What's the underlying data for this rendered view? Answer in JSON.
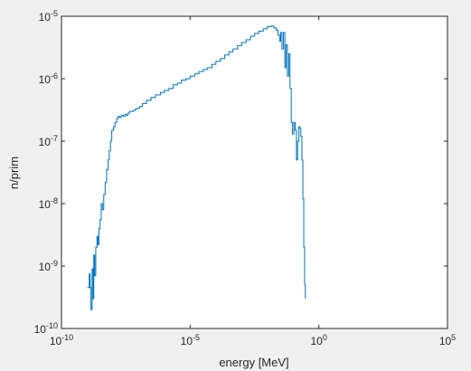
{
  "chart_data": {
    "type": "line",
    "xlabel": "energy [MeV]",
    "ylabel": "n/prim",
    "xscale": "log",
    "yscale": "log",
    "xlim": [
      1e-10,
      100000
    ],
    "ylim": [
      1e-10,
      1e-05
    ],
    "xticks": [
      {
        "value": 1e-10,
        "base": "10",
        "exp": "-10"
      },
      {
        "value": 1e-05,
        "base": "10",
        "exp": "-5"
      },
      {
        "value": 1,
        "base": "10",
        "exp": "0"
      },
      {
        "value": 100000,
        "base": "10",
        "exp": "5"
      }
    ],
    "yticks": [
      {
        "value": 1e-10,
        "base": "10",
        "exp": "-10"
      },
      {
        "value": 1e-09,
        "base": "10",
        "exp": "-9"
      },
      {
        "value": 1e-08,
        "base": "10",
        "exp": "-8"
      },
      {
        "value": 1e-07,
        "base": "10",
        "exp": "-7"
      },
      {
        "value": 1e-06,
        "base": "10",
        "exp": "-6"
      },
      {
        "value": 1e-05,
        "base": "10",
        "exp": "-5"
      }
    ],
    "grid": false,
    "line_color": "#0072bd",
    "series": [
      {
        "x": [
          1e-09,
          1.1e-09,
          1.2e-09,
          1.3e-09,
          1.4e-09,
          1.55e-09,
          1.7e-09,
          1.8e-09,
          1.95e-09,
          2.15e-09,
          2.4e-09,
          2.6e-09,
          2.85e-09,
          3.15e-09,
          3.5e-09,
          3.9e-09,
          4.4e-09,
          5e-09,
          5.7e-09,
          6.5e-09,
          7.2e-09,
          8e-09,
          9e-09,
          1.05e-08,
          1.2e-08,
          1.4e-08,
          1.6e-08,
          1.8e-08,
          2.1e-08,
          2.5e-08,
          2.9e-08,
          3.3e-08,
          3.8e-08,
          4.4e-08,
          5.2e-08,
          6.2e-08,
          7.5e-08,
          9e-08,
          1.1e-07,
          1.4e-07,
          2e-07,
          3e-07,
          4.5e-07,
          7e-07,
          1e-06,
          1.5e-06,
          2.2e-06,
          3.2e-06,
          4.6e-06,
          7e-06,
          1e-05,
          1.5e-05,
          2.2e-05,
          3.2e-05,
          4.6e-05,
          7e-05,
          0.0001,
          0.00015,
          0.00022,
          0.00032,
          0.00046,
          0.0007,
          0.001,
          0.0015,
          0.0022,
          0.0032,
          0.0046,
          0.007,
          0.01,
          0.014,
          0.018,
          0.022,
          0.026,
          0.03,
          0.033,
          0.037,
          0.042,
          0.048,
          0.053,
          0.06,
          0.068,
          0.076,
          0.085,
          0.095,
          0.108,
          0.12,
          0.135,
          0.15,
          0.168,
          0.185,
          0.2,
          0.22,
          0.24,
          0.26,
          0.28,
          0.3
        ],
        "y": [
          4.5e-10,
          4.5e-10,
          7.5e-10,
          4.5e-10,
          2e-10,
          9e-10,
          3e-10,
          1.5e-09,
          7e-10,
          2e-09,
          3e-09,
          2.2e-09,
          4e-09,
          5.5e-09,
          1e-08,
          8e-09,
          1.4e-08,
          2.2e-08,
          3.5e-08,
          5e-08,
          7e-08,
          1e-07,
          1.5e-07,
          1.7e-07,
          2e-07,
          2.3e-07,
          2.5e-07,
          2.4e-07,
          2.6e-07,
          2.5e-07,
          2.7e-07,
          2.6e-07,
          2.8e-07,
          3e-07,
          3e-07,
          3.1e-07,
          3.3e-07,
          3.4e-07,
          3.6e-07,
          4e-07,
          4.5e-07,
          5e-07,
          5.5e-07,
          6e-07,
          6.5e-07,
          7e-07,
          8e-07,
          8.5e-07,
          9.5e-07,
          1e-06,
          1.1e-06,
          1.2e-06,
          1.3e-06,
          1.4e-06,
          1.5e-06,
          1.7e-06,
          1.9e-06,
          2.1e-06,
          2.4e-06,
          2.7e-06,
          3e-06,
          3.4e-06,
          3.8e-06,
          4.2e-06,
          4.8e-06,
          5.3e-06,
          5.8e-06,
          6.3e-06,
          6.8e-06,
          7e-06,
          6.5e-06,
          6e-06,
          5e-06,
          4e-06,
          5.5e-06,
          3e-06,
          5.5e-06,
          1.5e-06,
          3.5e-06,
          1.1e-06,
          2.5e-06,
          7e-07,
          2e-07,
          1.3e-07,
          2e-07,
          1.5e-07,
          5e-08,
          1e-07,
          1.7e-07,
          1.6e-07,
          1.2e-07,
          5e-08,
          1.2e-08,
          2e-09,
          5e-10,
          3e-10
        ]
      }
    ]
  }
}
